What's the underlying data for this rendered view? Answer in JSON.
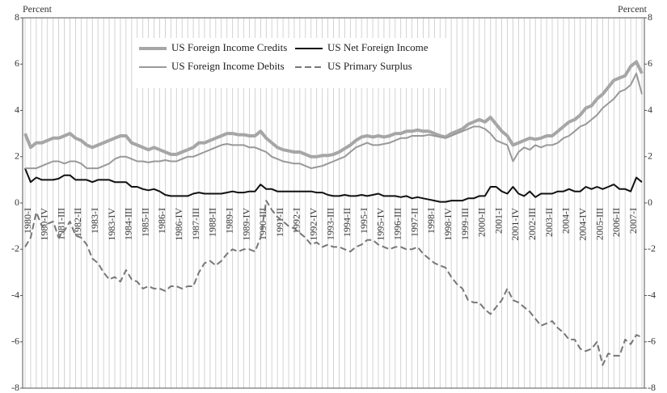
{
  "chart_data": {
    "type": "line",
    "y_label": "Percent",
    "y2_label": "Percent",
    "categories": [
      "1980-I",
      null,
      null,
      "1980-IV",
      null,
      null,
      "1981-III",
      null,
      null,
      "1982-II",
      null,
      null,
      "1983-I",
      null,
      null,
      "1983-IV",
      null,
      null,
      "1984-III",
      null,
      null,
      "1985-II",
      null,
      null,
      "1986-I",
      null,
      null,
      "1986-IV",
      null,
      null,
      "1987-III",
      null,
      null,
      "1988-II",
      null,
      null,
      "1989-I",
      null,
      null,
      "1989-IV",
      null,
      null,
      "1990-III",
      null,
      null,
      "1991-II",
      null,
      null,
      "1992-I",
      null,
      null,
      "1992-IV",
      null,
      null,
      "1993-III",
      null,
      null,
      "1994-II",
      null,
      null,
      "1995-I",
      null,
      null,
      "1995-IV",
      null,
      null,
      "1996-III",
      null,
      null,
      "1997-II",
      null,
      null,
      "1998-I",
      null,
      null,
      "1998-IV",
      null,
      null,
      "1999-III",
      null,
      null,
      "2000-II",
      null,
      null,
      "2001-I",
      null,
      null,
      "2001-IV",
      null,
      null,
      "2002-III",
      null,
      null,
      "2003-II",
      null,
      null,
      "2004-I",
      null,
      null,
      "2004-IV",
      null,
      null,
      "2005-III",
      null,
      null,
      "2006-II",
      null,
      null,
      "2007-I",
      null,
      null
    ],
    "series": [
      {
        "name": "US Foreign Income Credits",
        "color": "#a6a6a6",
        "width": 4,
        "dash": false,
        "values": [
          3.0,
          2.4,
          2.6,
          2.6,
          2.7,
          2.8,
          2.8,
          2.9,
          3.0,
          2.8,
          2.7,
          2.5,
          2.4,
          2.5,
          2.6,
          2.7,
          2.8,
          2.9,
          2.9,
          2.6,
          2.5,
          2.4,
          2.3,
          2.4,
          2.3,
          2.2,
          2.1,
          2.1,
          2.2,
          2.3,
          2.4,
          2.6,
          2.6,
          2.7,
          2.8,
          2.9,
          3.0,
          3.0,
          2.95,
          2.95,
          2.9,
          2.9,
          3.1,
          2.8,
          2.6,
          2.4,
          2.3,
          2.25,
          2.2,
          2.2,
          2.1,
          2.0,
          2.0,
          2.05,
          2.05,
          2.1,
          2.2,
          2.35,
          2.5,
          2.7,
          2.85,
          2.9,
          2.85,
          2.9,
          2.85,
          2.9,
          3.0,
          3.0,
          3.1,
          3.1,
          3.15,
          3.1,
          3.1,
          3.0,
          2.9,
          2.85,
          3.0,
          3.1,
          3.2,
          3.4,
          3.5,
          3.6,
          3.5,
          3.7,
          3.4,
          3.1,
          2.9,
          2.5,
          2.6,
          2.7,
          2.8,
          2.75,
          2.8,
          2.9,
          2.9,
          3.1,
          3.3,
          3.5,
          3.6,
          3.8,
          4.1,
          4.2,
          4.5,
          4.7,
          5.0,
          5.3,
          5.4,
          5.5,
          5.9,
          6.1,
          5.6
        ]
      },
      {
        "name": "US Net Foreign Income",
        "color": "#111111",
        "width": 2,
        "dash": false,
        "values": [
          1.5,
          0.9,
          1.1,
          1.0,
          1.0,
          1.0,
          1.05,
          1.2,
          1.2,
          1.0,
          1.0,
          1.0,
          0.9,
          1.0,
          1.0,
          1.0,
          0.9,
          0.9,
          0.9,
          0.7,
          0.7,
          0.6,
          0.55,
          0.6,
          0.5,
          0.35,
          0.3,
          0.3,
          0.3,
          0.3,
          0.4,
          0.45,
          0.4,
          0.4,
          0.4,
          0.4,
          0.45,
          0.5,
          0.45,
          0.45,
          0.5,
          0.5,
          0.8,
          0.6,
          0.6,
          0.5,
          0.5,
          0.5,
          0.5,
          0.5,
          0.5,
          0.5,
          0.45,
          0.45,
          0.35,
          0.3,
          0.3,
          0.35,
          0.3,
          0.3,
          0.35,
          0.3,
          0.35,
          0.4,
          0.3,
          0.3,
          0.3,
          0.25,
          0.3,
          0.2,
          0.25,
          0.2,
          0.15,
          0.1,
          0.05,
          0.05,
          0.1,
          0.1,
          0.1,
          0.2,
          0.2,
          0.3,
          0.3,
          0.7,
          0.7,
          0.5,
          0.4,
          0.7,
          0.4,
          0.3,
          0.5,
          0.25,
          0.4,
          0.4,
          0.4,
          0.5,
          0.5,
          0.6,
          0.5,
          0.5,
          0.7,
          0.6,
          0.7,
          0.6,
          0.7,
          0.8,
          0.6,
          0.6,
          0.5,
          1.1,
          0.9
        ]
      },
      {
        "name": "US Foreign Income Debits",
        "color": "#999999",
        "width": 2,
        "dash": false,
        "values": [
          1.5,
          1.5,
          1.5,
          1.6,
          1.7,
          1.8,
          1.8,
          1.7,
          1.8,
          1.8,
          1.7,
          1.5,
          1.5,
          1.5,
          1.6,
          1.7,
          1.9,
          2.0,
          2.0,
          1.9,
          1.8,
          1.8,
          1.75,
          1.8,
          1.8,
          1.85,
          1.8,
          1.8,
          1.9,
          2.0,
          2.0,
          2.1,
          2.2,
          2.3,
          2.4,
          2.5,
          2.55,
          2.5,
          2.5,
          2.5,
          2.4,
          2.4,
          2.3,
          2.2,
          2.0,
          1.9,
          1.8,
          1.75,
          1.7,
          1.7,
          1.6,
          1.5,
          1.55,
          1.6,
          1.7,
          1.8,
          1.9,
          2.0,
          2.2,
          2.4,
          2.5,
          2.6,
          2.5,
          2.5,
          2.55,
          2.6,
          2.7,
          2.8,
          2.8,
          2.9,
          2.9,
          2.9,
          2.95,
          2.9,
          2.85,
          2.8,
          2.9,
          3.0,
          3.1,
          3.2,
          3.3,
          3.3,
          3.2,
          3.0,
          2.7,
          2.6,
          2.5,
          1.8,
          2.2,
          2.4,
          2.3,
          2.5,
          2.4,
          2.5,
          2.5,
          2.6,
          2.8,
          2.9,
          3.1,
          3.3,
          3.4,
          3.6,
          3.8,
          4.1,
          4.3,
          4.5,
          4.8,
          4.9,
          5.1,
          5.6,
          4.7
        ]
      },
      {
        "name": "US Primary Surplus",
        "color": "#777777",
        "width": 2,
        "dash": true,
        "values": [
          -1.9,
          -1.5,
          -0.4,
          -1.0,
          -0.9,
          -0.8,
          -1.5,
          -1.2,
          -0.8,
          -1.4,
          -1.5,
          -1.8,
          -2.4,
          -2.6,
          -3.0,
          -3.3,
          -3.2,
          -3.4,
          -2.9,
          -3.3,
          -3.4,
          -3.7,
          -3.6,
          -3.7,
          -3.7,
          -3.8,
          -3.6,
          -3.6,
          -3.7,
          -3.6,
          -3.6,
          -3.0,
          -2.6,
          -2.5,
          -2.7,
          -2.5,
          -2.2,
          -2.0,
          -2.1,
          -2.0,
          -2.0,
          -2.1,
          -1.5,
          0.1,
          -0.3,
          -0.6,
          -0.8,
          -1.0,
          -1.1,
          -1.3,
          -1.5,
          -1.8,
          -1.7,
          -1.9,
          -1.8,
          -1.9,
          -1.9,
          -2.0,
          -2.1,
          -1.9,
          -1.8,
          -1.6,
          -1.6,
          -1.8,
          -1.9,
          -2.0,
          -1.9,
          -1.9,
          -2.0,
          -2.0,
          -1.9,
          -2.2,
          -2.4,
          -2.6,
          -2.7,
          -2.8,
          -3.2,
          -3.5,
          -3.7,
          -4.2,
          -4.3,
          -4.3,
          -4.6,
          -4.8,
          -4.5,
          -4.2,
          -3.7,
          -4.2,
          -4.3,
          -4.5,
          -4.7,
          -5.0,
          -5.3,
          -5.2,
          -5.1,
          -5.4,
          -5.6,
          -5.9,
          -5.9,
          -6.3,
          -6.4,
          -6.3,
          -6.0,
          -7.0,
          -6.5,
          -6.6,
          -6.6,
          -5.9,
          -6.1,
          -5.7,
          -5.8
        ]
      }
    ],
    "ylim": [
      -8,
      8
    ],
    "yticks": [
      -8,
      -6,
      -4,
      -2,
      0,
      2,
      4,
      6,
      8
    ],
    "grid": true
  }
}
